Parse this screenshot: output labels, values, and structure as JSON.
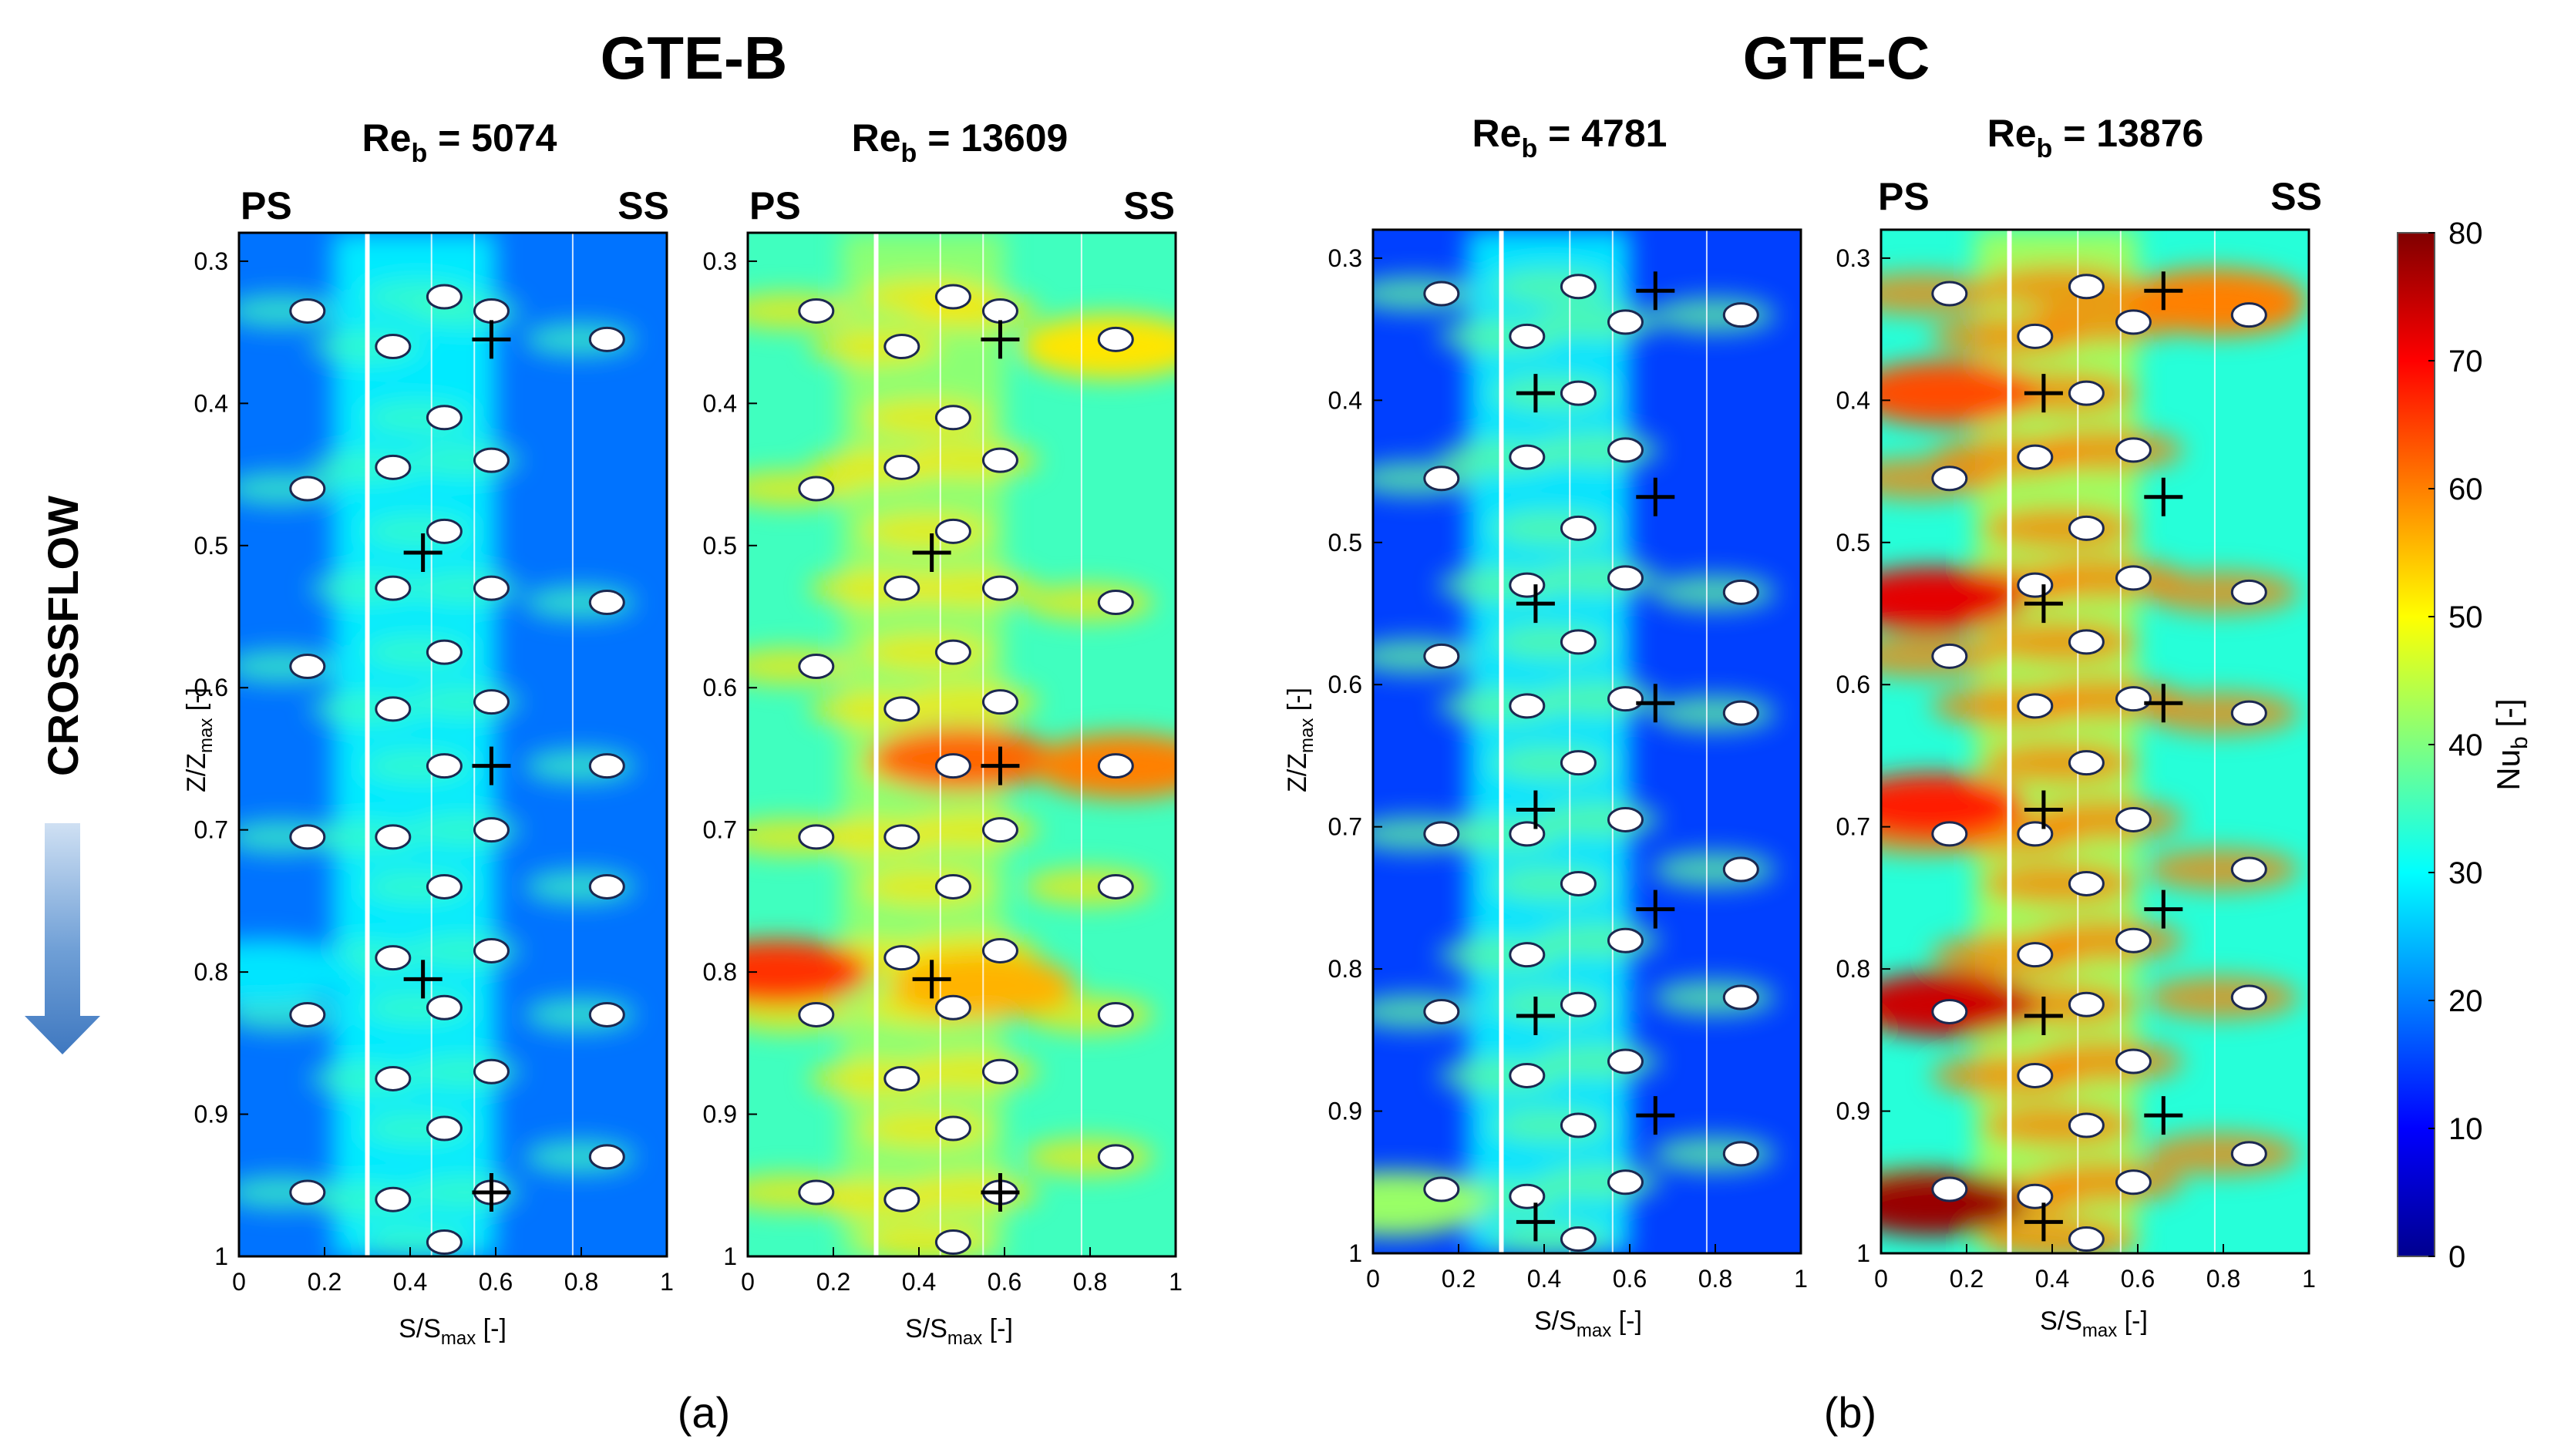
{
  "figure": {
    "groups": [
      {
        "title": "GTE-B",
        "caption": "(a)"
      },
      {
        "title": "GTE-C",
        "caption": "(b)"
      }
    ],
    "side_labels": {
      "left": "PS",
      "right": "SS"
    },
    "crossflow_label": "CROSSFLOW",
    "colors": {
      "crossflow_arrow": "#4a86c8",
      "wall_line": "#ffffff",
      "marker": "#000000"
    },
    "colormap": "jet",
    "colorbar": {
      "min": 0,
      "max": 80,
      "ticks": [
        0,
        10,
        20,
        30,
        40,
        50,
        60,
        70,
        80
      ],
      "label_main": "Nu",
      "label_sub": "b",
      "label_tail": " [-]"
    }
  },
  "chart_data": [
    {
      "type": "heatmap",
      "group": "GTE-B",
      "title_main": "Re",
      "title_sub": "b",
      "title_tail": " = 5074",
      "Re_b": 5074,
      "xlabel_main": "S/S",
      "xlabel_sub": "max",
      "xlabel_tail": " [-]",
      "ylabel_main": "Z/Z",
      "ylabel_sub": "max",
      "ylabel_tail": " [-]",
      "xlim": [
        0,
        1
      ],
      "ylim": [
        0.28,
        1.0
      ],
      "y_reversed": true,
      "xticks": [
        "0",
        "0.2",
        "0.4",
        "0.6",
        "0.8",
        "1"
      ],
      "yticks": [
        "0.3",
        "0.4",
        "0.5",
        "0.6",
        "0.7",
        "0.8",
        "0.9",
        "1"
      ],
      "base_nu": 19,
      "stripe_nu": 30,
      "wake_scale": 0.5,
      "hot_spots": [
        {
          "s": 0.06,
          "z": 0.8,
          "nu": 28
        }
      ],
      "vertical_lines": [
        0.3,
        0.45,
        0.55,
        0.78
      ],
      "measurement_points": [
        [
          0.59,
          0.355
        ],
        [
          0.43,
          0.505
        ],
        [
          0.59,
          0.655
        ],
        [
          0.43,
          0.805
        ],
        [
          0.59,
          0.955
        ]
      ],
      "holes": [
        [
          0.16,
          0.335
        ],
        [
          0.36,
          0.36
        ],
        [
          0.48,
          0.325
        ],
        [
          0.59,
          0.335
        ],
        [
          0.86,
          0.355
        ],
        [
          0.48,
          0.41
        ],
        [
          0.36,
          0.445
        ],
        [
          0.59,
          0.44
        ],
        [
          0.16,
          0.46
        ],
        [
          0.48,
          0.49
        ],
        [
          0.36,
          0.53
        ],
        [
          0.59,
          0.53
        ],
        [
          0.86,
          0.54
        ],
        [
          0.48,
          0.575
        ],
        [
          0.16,
          0.585
        ],
        [
          0.36,
          0.615
        ],
        [
          0.59,
          0.61
        ],
        [
          0.48,
          0.655
        ],
        [
          0.86,
          0.655
        ],
        [
          0.36,
          0.705
        ],
        [
          0.59,
          0.7
        ],
        [
          0.16,
          0.705
        ],
        [
          0.48,
          0.74
        ],
        [
          0.86,
          0.74
        ],
        [
          0.36,
          0.79
        ],
        [
          0.59,
          0.785
        ],
        [
          0.48,
          0.825
        ],
        [
          0.16,
          0.83
        ],
        [
          0.86,
          0.83
        ],
        [
          0.36,
          0.875
        ],
        [
          0.59,
          0.87
        ],
        [
          0.48,
          0.91
        ],
        [
          0.86,
          0.93
        ],
        [
          0.16,
          0.955
        ],
        [
          0.36,
          0.96
        ],
        [
          0.59,
          0.955
        ],
        [
          0.48,
          0.99
        ]
      ]
    },
    {
      "type": "heatmap",
      "group": "GTE-B",
      "title_main": "Re",
      "title_sub": "b",
      "title_tail": " = 13609",
      "Re_b": 13609,
      "xlabel_main": "S/S",
      "xlabel_sub": "max",
      "xlabel_tail": " [-]",
      "ylabel_main": "",
      "ylabel_sub": "",
      "ylabel_tail": "",
      "xlim": [
        0,
        1
      ],
      "ylim": [
        0.28,
        1.0
      ],
      "y_reversed": true,
      "xticks": [
        "0",
        "0.2",
        "0.4",
        "0.6",
        "0.8",
        "1"
      ],
      "yticks": [
        "0.3",
        "0.4",
        "0.5",
        "0.6",
        "0.7",
        "0.8",
        "0.9",
        "1"
      ],
      "base_nu": 35,
      "stripe_nu": 42,
      "wake_scale": 1.0,
      "hot_spots": [
        {
          "s": 0.5,
          "z": 0.65,
          "nu": 62
        },
        {
          "s": 0.88,
          "z": 0.655,
          "nu": 60
        },
        {
          "s": 0.07,
          "z": 0.8,
          "nu": 66
        },
        {
          "s": 0.55,
          "z": 0.81,
          "nu": 56
        },
        {
          "s": 0.85,
          "z": 0.36,
          "nu": 52
        }
      ],
      "vertical_lines": [
        0.3,
        0.45,
        0.55,
        0.78
      ],
      "measurement_points": [
        [
          0.59,
          0.355
        ],
        [
          0.43,
          0.505
        ],
        [
          0.59,
          0.655
        ],
        [
          0.43,
          0.805
        ],
        [
          0.59,
          0.955
        ]
      ],
      "holes": [
        [
          0.16,
          0.335
        ],
        [
          0.36,
          0.36
        ],
        [
          0.48,
          0.325
        ],
        [
          0.59,
          0.335
        ],
        [
          0.86,
          0.355
        ],
        [
          0.48,
          0.41
        ],
        [
          0.36,
          0.445
        ],
        [
          0.59,
          0.44
        ],
        [
          0.16,
          0.46
        ],
        [
          0.48,
          0.49
        ],
        [
          0.36,
          0.53
        ],
        [
          0.59,
          0.53
        ],
        [
          0.86,
          0.54
        ],
        [
          0.48,
          0.575
        ],
        [
          0.16,
          0.585
        ],
        [
          0.36,
          0.615
        ],
        [
          0.59,
          0.61
        ],
        [
          0.48,
          0.655
        ],
        [
          0.86,
          0.655
        ],
        [
          0.36,
          0.705
        ],
        [
          0.59,
          0.7
        ],
        [
          0.16,
          0.705
        ],
        [
          0.48,
          0.74
        ],
        [
          0.86,
          0.74
        ],
        [
          0.36,
          0.79
        ],
        [
          0.59,
          0.785
        ],
        [
          0.48,
          0.825
        ],
        [
          0.16,
          0.83
        ],
        [
          0.86,
          0.83
        ],
        [
          0.36,
          0.875
        ],
        [
          0.59,
          0.87
        ],
        [
          0.48,
          0.91
        ],
        [
          0.86,
          0.93
        ],
        [
          0.16,
          0.955
        ],
        [
          0.36,
          0.96
        ],
        [
          0.59,
          0.955
        ],
        [
          0.48,
          0.99
        ]
      ]
    },
    {
      "type": "heatmap",
      "group": "GTE-C",
      "title_main": "Re",
      "title_sub": "b",
      "title_tail": " = 4781",
      "Re_b": 4781,
      "xlabel_main": "S/S",
      "xlabel_sub": "max",
      "xlabel_tail": " [-]",
      "ylabel_main": "Z/Z",
      "ylabel_sub": "max",
      "ylabel_tail": " [-]",
      "xlim": [
        0,
        1
      ],
      "ylim": [
        0.28,
        1.0
      ],
      "y_reversed": true,
      "xticks": [
        "0",
        "0.2",
        "0.4",
        "0.6",
        "0.8",
        "1"
      ],
      "yticks": [
        "0.3",
        "0.4",
        "0.5",
        "0.6",
        "0.7",
        "0.8",
        "0.9",
        "1"
      ],
      "base_nu": 15,
      "stripe_nu": 30,
      "wake_scale": 0.8,
      "hot_spots": [
        {
          "s": 0.05,
          "z": 0.965,
          "nu": 42
        }
      ],
      "vertical_lines": [
        0.3,
        0.46,
        0.56,
        0.78
      ],
      "measurement_points": [
        [
          0.66,
          0.323
        ],
        [
          0.38,
          0.395
        ],
        [
          0.66,
          0.468
        ],
        [
          0.38,
          0.543
        ],
        [
          0.66,
          0.613
        ],
        [
          0.38,
          0.688
        ],
        [
          0.66,
          0.758
        ],
        [
          0.38,
          0.833
        ],
        [
          0.66,
          0.903
        ],
        [
          0.38,
          0.978
        ]
      ],
      "holes": [
        [
          0.16,
          0.325
        ],
        [
          0.36,
          0.355
        ],
        [
          0.48,
          0.32
        ],
        [
          0.59,
          0.345
        ],
        [
          0.86,
          0.34
        ],
        [
          0.48,
          0.395
        ],
        [
          0.36,
          0.44
        ],
        [
          0.59,
          0.435
        ],
        [
          0.16,
          0.455
        ],
        [
          0.48,
          0.49
        ],
        [
          0.36,
          0.53
        ],
        [
          0.59,
          0.525
        ],
        [
          0.86,
          0.535
        ],
        [
          0.48,
          0.57
        ],
        [
          0.16,
          0.58
        ],
        [
          0.36,
          0.615
        ],
        [
          0.59,
          0.61
        ],
        [
          0.48,
          0.655
        ],
        [
          0.86,
          0.62
        ],
        [
          0.36,
          0.705
        ],
        [
          0.59,
          0.695
        ],
        [
          0.16,
          0.705
        ],
        [
          0.48,
          0.74
        ],
        [
          0.86,
          0.73
        ],
        [
          0.36,
          0.79
        ],
        [
          0.59,
          0.78
        ],
        [
          0.48,
          0.825
        ],
        [
          0.16,
          0.83
        ],
        [
          0.86,
          0.82
        ],
        [
          0.36,
          0.875
        ],
        [
          0.59,
          0.865
        ],
        [
          0.48,
          0.91
        ],
        [
          0.86,
          0.93
        ],
        [
          0.16,
          0.955
        ],
        [
          0.36,
          0.96
        ],
        [
          0.59,
          0.95
        ],
        [
          0.48,
          0.99
        ]
      ]
    },
    {
      "type": "heatmap",
      "group": "GTE-C",
      "title_main": "Re",
      "title_sub": "b",
      "title_tail": " = 13876",
      "Re_b": 13876,
      "xlabel_main": "S/S",
      "xlabel_sub": "max",
      "xlabel_tail": " [-]",
      "ylabel_main": "",
      "ylabel_sub": "",
      "ylabel_tail": "",
      "xlim": [
        0,
        1
      ],
      "ylim": [
        0.28,
        1.0
      ],
      "y_reversed": true,
      "xticks": [
        "0",
        "0.2",
        "0.4",
        "0.6",
        "0.8",
        "1"
      ],
      "yticks": [
        "0.3",
        "0.4",
        "0.5",
        "0.6",
        "0.7",
        "0.8",
        "0.9",
        "1"
      ],
      "base_nu": 33,
      "stripe_nu": 44,
      "wake_scale": 1.6,
      "hot_spots": [
        {
          "s": 0.12,
          "z": 0.54,
          "nu": 72
        },
        {
          "s": 0.12,
          "z": 0.685,
          "nu": 68
        },
        {
          "s": 0.15,
          "z": 0.825,
          "nu": 74
        },
        {
          "s": 0.12,
          "z": 0.965,
          "nu": 78
        },
        {
          "s": 0.15,
          "z": 0.395,
          "nu": 64
        },
        {
          "s": 0.78,
          "z": 0.33,
          "nu": 60
        }
      ],
      "vertical_lines": [
        0.3,
        0.46,
        0.56,
        0.78
      ],
      "measurement_points": [
        [
          0.66,
          0.323
        ],
        [
          0.38,
          0.395
        ],
        [
          0.66,
          0.468
        ],
        [
          0.38,
          0.543
        ],
        [
          0.66,
          0.613
        ],
        [
          0.38,
          0.688
        ],
        [
          0.66,
          0.758
        ],
        [
          0.38,
          0.833
        ],
        [
          0.66,
          0.903
        ],
        [
          0.38,
          0.978
        ]
      ],
      "holes": [
        [
          0.16,
          0.325
        ],
        [
          0.36,
          0.355
        ],
        [
          0.48,
          0.32
        ],
        [
          0.59,
          0.345
        ],
        [
          0.86,
          0.34
        ],
        [
          0.48,
          0.395
        ],
        [
          0.36,
          0.44
        ],
        [
          0.59,
          0.435
        ],
        [
          0.16,
          0.455
        ],
        [
          0.48,
          0.49
        ],
        [
          0.36,
          0.53
        ],
        [
          0.59,
          0.525
        ],
        [
          0.86,
          0.535
        ],
        [
          0.48,
          0.57
        ],
        [
          0.16,
          0.58
        ],
        [
          0.36,
          0.615
        ],
        [
          0.59,
          0.61
        ],
        [
          0.48,
          0.655
        ],
        [
          0.86,
          0.62
        ],
        [
          0.36,
          0.705
        ],
        [
          0.59,
          0.695
        ],
        [
          0.16,
          0.705
        ],
        [
          0.48,
          0.74
        ],
        [
          0.86,
          0.73
        ],
        [
          0.36,
          0.79
        ],
        [
          0.59,
          0.78
        ],
        [
          0.48,
          0.825
        ],
        [
          0.16,
          0.83
        ],
        [
          0.86,
          0.82
        ],
        [
          0.36,
          0.875
        ],
        [
          0.59,
          0.865
        ],
        [
          0.48,
          0.91
        ],
        [
          0.86,
          0.93
        ],
        [
          0.16,
          0.955
        ],
        [
          0.36,
          0.96
        ],
        [
          0.59,
          0.95
        ],
        [
          0.48,
          0.99
        ]
      ]
    }
  ]
}
